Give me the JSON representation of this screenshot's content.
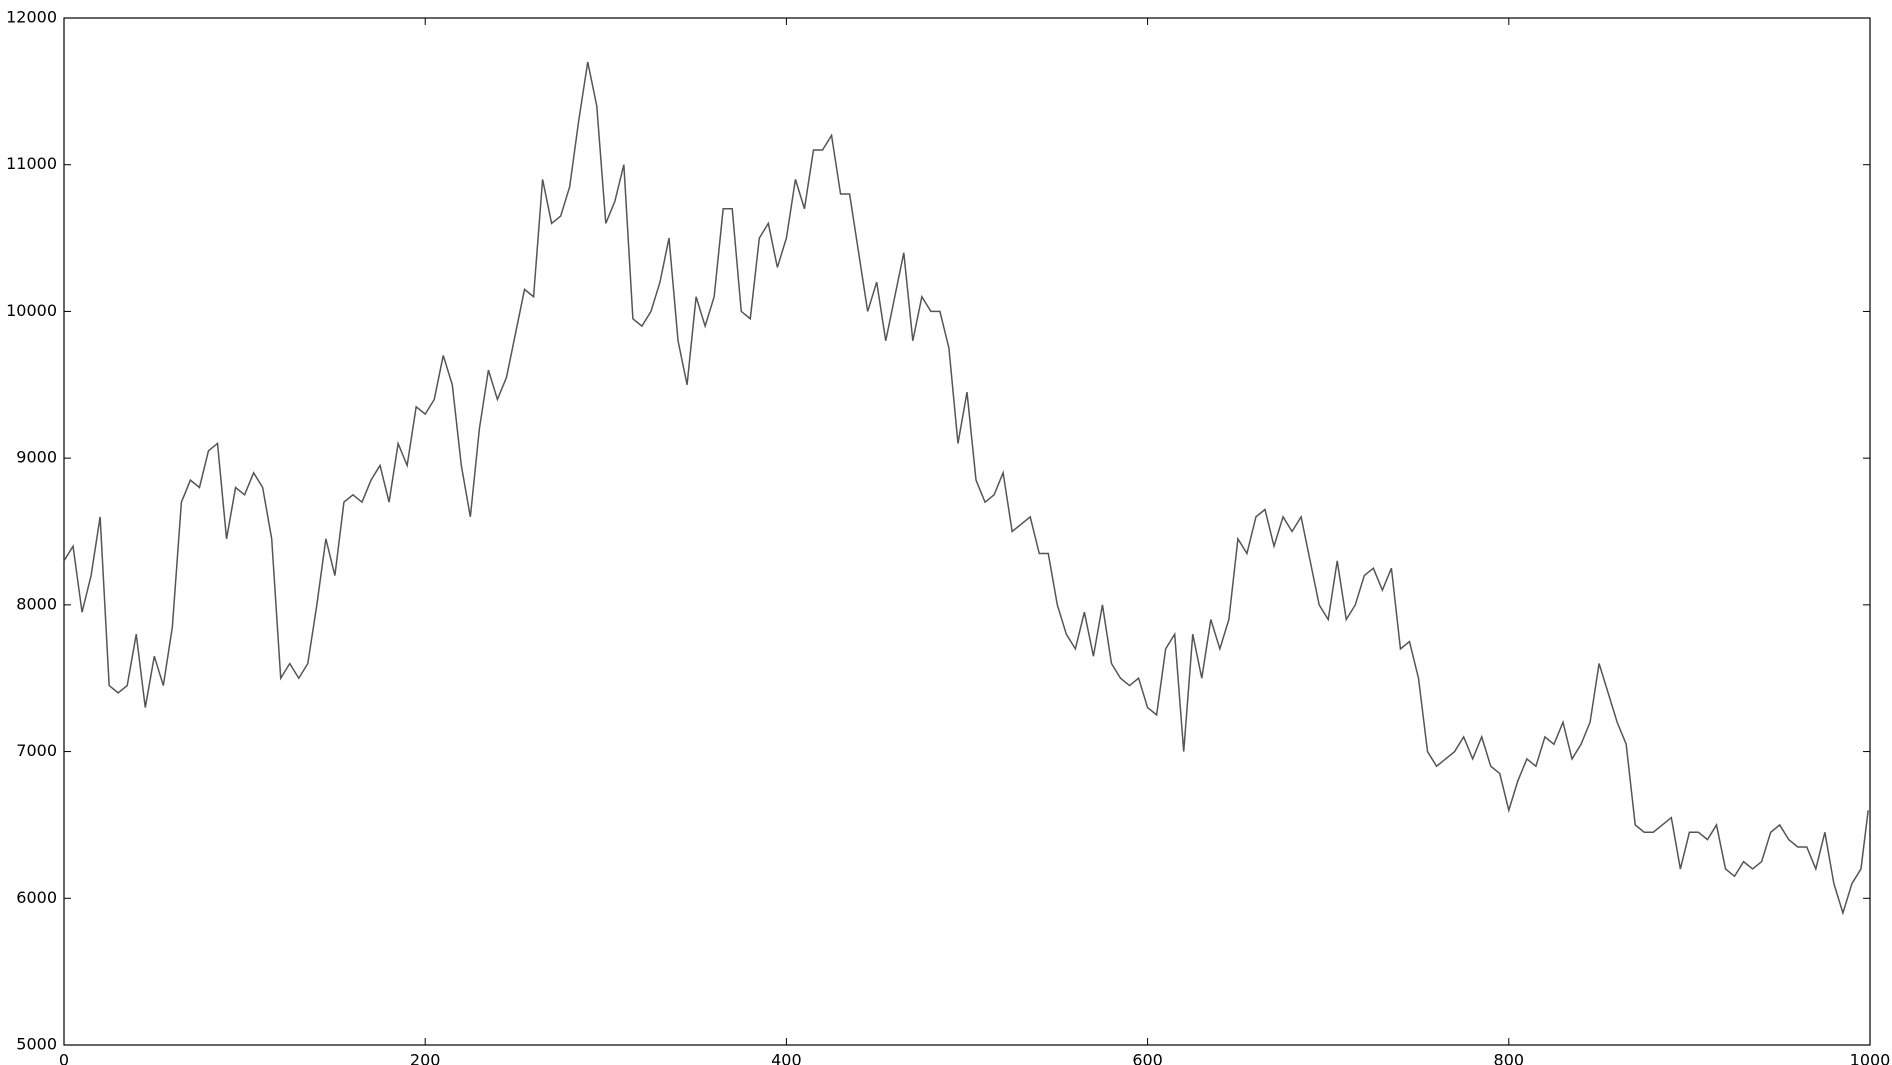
{
  "chart_data": {
    "type": "line",
    "x": [
      0,
      5,
      10,
      15,
      20,
      25,
      30,
      35,
      40,
      45,
      50,
      55,
      60,
      65,
      70,
      75,
      80,
      85,
      90,
      95,
      100,
      105,
      110,
      115,
      120,
      125,
      130,
      135,
      140,
      145,
      150,
      155,
      160,
      165,
      170,
      175,
      180,
      185,
      190,
      195,
      200,
      205,
      210,
      215,
      220,
      225,
      230,
      235,
      240,
      245,
      250,
      255,
      260,
      265,
      270,
      275,
      280,
      285,
      290,
      295,
      300,
      305,
      310,
      315,
      320,
      325,
      330,
      335,
      340,
      345,
      350,
      355,
      360,
      365,
      370,
      375,
      380,
      385,
      390,
      395,
      400,
      405,
      410,
      415,
      420,
      425,
      430,
      435,
      440,
      445,
      450,
      455,
      460,
      465,
      470,
      475,
      480,
      485,
      490,
      495,
      500,
      505,
      510,
      515,
      520,
      525,
      530,
      535,
      540,
      545,
      550,
      555,
      560,
      565,
      570,
      575,
      580,
      585,
      590,
      595,
      600,
      605,
      610,
      615,
      620,
      625,
      630,
      635,
      640,
      645,
      650,
      655,
      660,
      665,
      670,
      675,
      680,
      685,
      690,
      695,
      700,
      705,
      710,
      715,
      720,
      725,
      730,
      735,
      740,
      745,
      750,
      755,
      760,
      765,
      770,
      775,
      780,
      785,
      790,
      795,
      800,
      805,
      810,
      815,
      820,
      825,
      830,
      835,
      840,
      845,
      850,
      855,
      860,
      865,
      870,
      875,
      880,
      885,
      890,
      895,
      900,
      905,
      910,
      915,
      920,
      925,
      930,
      935,
      940,
      945,
      950,
      955,
      960,
      965,
      970,
      975,
      980,
      985,
      990,
      995,
      999
    ],
    "series": [
      {
        "color": "#555555",
        "values": [
          8300,
          8400,
          7950,
          8200,
          8600,
          7450,
          7400,
          7450,
          7800,
          7300,
          7650,
          7450,
          7850,
          8700,
          8850,
          8800,
          9050,
          9100,
          8450,
          8800,
          8750,
          8900,
          8800,
          8450,
          7500,
          7600,
          7500,
          7600,
          8000,
          8450,
          8200,
          8700,
          8750,
          8700,
          8850,
          8950,
          8700,
          9100,
          8950,
          9350,
          9300,
          9400,
          9700,
          9500,
          8950,
          8600,
          9200,
          9600,
          9400,
          9550,
          9850,
          10150,
          10100,
          10900,
          10600,
          10650,
          10850,
          11300,
          11700,
          11400,
          10600,
          10750,
          11000,
          9950,
          9900,
          10000,
          10200,
          10500,
          9800,
          9500,
          10100,
          9900,
          10100,
          10700,
          10700,
          10000,
          9950,
          10500,
          10600,
          10300,
          10500,
          10900,
          10700,
          11100,
          11100,
          11200,
          10800,
          10800,
          10400,
          10000,
          10200,
          9800,
          10100,
          10400,
          9800,
          10100,
          10000,
          10000,
          9750,
          9100,
          9450,
          8850,
          8700,
          8750,
          8900,
          8500,
          8550,
          8600,
          8350,
          8350,
          8000,
          7800,
          7700,
          7950,
          7650,
          8000,
          7600,
          7500,
          7450,
          7500,
          7300,
          7250,
          7700,
          7800,
          7000,
          7800,
          7500,
          7900,
          7700,
          7900,
          8450,
          8350,
          8600,
          8650,
          8400,
          8600,
          8500,
          8600,
          8300,
          8000,
          7900,
          8300,
          7900,
          8000,
          8200,
          8250,
          8100,
          8250,
          7700,
          7750,
          7500,
          7000,
          6900,
          6950,
          7000,
          7100,
          6950,
          7100,
          6900,
          6850,
          6600,
          6800,
          6950,
          6900,
          7100,
          7050,
          7200,
          6950,
          7050,
          7200,
          7600,
          7400,
          7200,
          7050,
          6500,
          6450,
          6450,
          6500,
          6550,
          6200,
          6450,
          6450,
          6400,
          6500,
          6200,
          6150,
          6250,
          6200,
          6250,
          6450,
          6500,
          6400,
          6350,
          6350,
          6200,
          6450,
          6100,
          5900,
          6100,
          6200,
          6600
        ]
      }
    ],
    "xlim": [
      0,
      1000
    ],
    "xticks": [
      0,
      200,
      400,
      600,
      800,
      1000
    ],
    "ylim": [
      5000,
      12000
    ],
    "yticks": [
      5000,
      6000,
      7000,
      8000,
      9000,
      10000,
      11000,
      12000
    ]
  }
}
